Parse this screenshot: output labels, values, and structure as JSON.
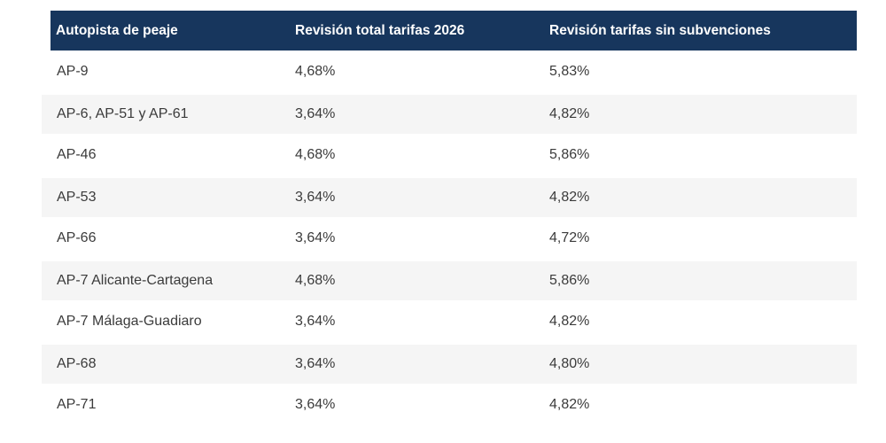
{
  "chart_data": {
    "type": "table",
    "title": "",
    "columns": [
      "Autopista de peaje",
      "Revisión total tarifas 2026",
      "Revisión tarifas sin subvenciones"
    ],
    "rows": [
      [
        "AP-9",
        "4,68%",
        "5,83%"
      ],
      [
        "AP-6, AP-51 y AP-61",
        "3,64%",
        "4,82%"
      ],
      [
        "AP-46",
        "4,68%",
        "5,86%"
      ],
      [
        "AP-53",
        "3,64%",
        "4,82%"
      ],
      [
        "AP-66",
        "3,64%",
        "4,72%"
      ],
      [
        "AP-7 Alicante-Cartagena",
        "4,68%",
        "5,86%"
      ],
      [
        "AP-7 Málaga-Guadiaro",
        "3,64%",
        "4,82%"
      ],
      [
        "AP-68",
        "3,64%",
        "4,80%"
      ],
      [
        "AP-71",
        "3,64%",
        "4,82%"
      ]
    ],
    "layout": {
      "zebra_striping": true,
      "header_style": "dark-navy-bar",
      "value_alignment": "left"
    }
  },
  "colors": {
    "header_bg": "#17365d",
    "header_text": "#ffffff",
    "stripe_bg": "#f5f5f5",
    "body_text": "#3b3b3b",
    "page_bg": "#ffffff"
  }
}
